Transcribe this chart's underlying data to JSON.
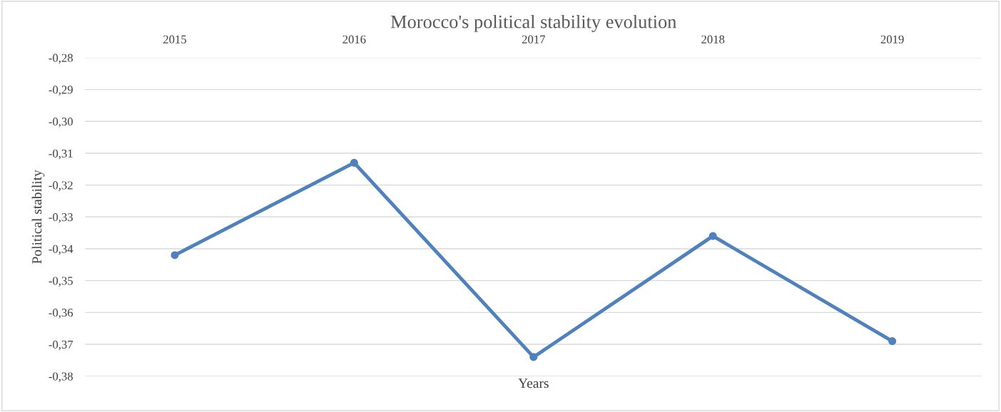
{
  "chart_data": {
    "type": "line",
    "title": "Morocco's political stability evolution",
    "xlabel": "Years",
    "ylabel": "Political stability",
    "categories": [
      "2015",
      "2016",
      "2017",
      "2018",
      "2019"
    ],
    "series": [
      {
        "color": "#4f81bd",
        "values": [
          -0.342,
          -0.313,
          -0.374,
          -0.336,
          -0.369
        ]
      }
    ],
    "ylim": [
      -0.38,
      -0.28
    ],
    "yticks": [
      {
        "value": -0.38,
        "label": "-0,38"
      },
      {
        "value": -0.37,
        "label": "-0,37"
      },
      {
        "value": -0.36,
        "label": "-0,36"
      },
      {
        "value": -0.35,
        "label": "-0,35"
      },
      {
        "value": -0.34,
        "label": "-0,34"
      },
      {
        "value": -0.33,
        "label": "-0,33"
      },
      {
        "value": -0.32,
        "label": "-0,32"
      },
      {
        "value": -0.31,
        "label": "-0,31"
      },
      {
        "value": -0.3,
        "label": "-0,30"
      },
      {
        "value": -0.29,
        "label": "-0,29"
      },
      {
        "value": -0.28,
        "label": "-0,28"
      }
    ],
    "grid": "y",
    "marker": "circle",
    "line_style": "solid"
  }
}
